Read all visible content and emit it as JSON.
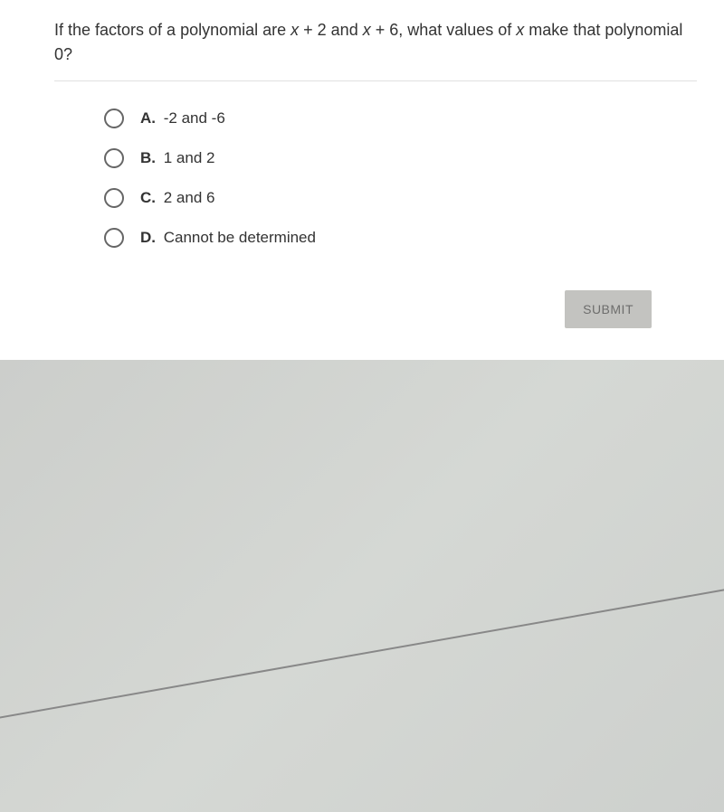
{
  "question": {
    "text_parts": {
      "part1": "If the factors of a polynomial are ",
      "factor1": "x",
      "plus1": " + 2 and ",
      "factor2": "x",
      "plus2": " + 6, what values of ",
      "var": "x",
      "part2": " make that polynomial 0?"
    }
  },
  "options": [
    {
      "letter": "A.",
      "text": "-2 and -6"
    },
    {
      "letter": "B.",
      "text": "1 and 2"
    },
    {
      "letter": "C.",
      "text": "2 and 6"
    },
    {
      "letter": "D.",
      "text": "Cannot be determined"
    }
  ],
  "buttons": {
    "submit": "SUBMIT"
  },
  "styles": {
    "card_background": "#ffffff",
    "page_background": "#d8dad8",
    "text_color": "#333333",
    "radio_border": "#666666",
    "submit_bg": "#c3c3c0",
    "submit_text": "#6d6d6c",
    "divider_color": "#e0e0e0",
    "question_fontsize": 18,
    "option_fontsize": 17,
    "submit_fontsize": 14
  }
}
